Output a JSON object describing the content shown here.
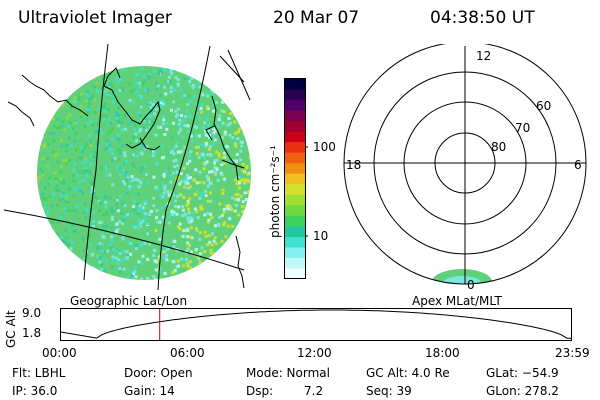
{
  "header": {
    "instrument": "Ultraviolet Imager",
    "date": "20 Mar 07",
    "time": "04:38:50 UT"
  },
  "geo_panel": {
    "label": "Geographic Lat/Lon"
  },
  "apex_panel": {
    "label": "Apex MLat/MLT",
    "mlt_labels": {
      "top": "12",
      "left": "18",
      "right": "6",
      "bottom": "0"
    },
    "lat_labels": [
      "60",
      "70",
      "80"
    ]
  },
  "colorbar": {
    "unit_label": "photon cm⁻²s⁻¹",
    "tick_labels": [
      "100",
      "10"
    ],
    "colors": [
      "#000040",
      "#2a0050",
      "#500068",
      "#7a0050",
      "#a00030",
      "#c80018",
      "#e83010",
      "#f06010",
      "#f09010",
      "#f0c020",
      "#d0e030",
      "#a0e030",
      "#70d840",
      "#40d060",
      "#20c8a0",
      "#40e0d0",
      "#80f0f0",
      "#c0f8f8",
      "#f0ffff"
    ]
  },
  "timeline": {
    "y_title": "GC Alt",
    "y_ticks": [
      "9.0",
      "1.8"
    ],
    "x_ticks": [
      "00:00",
      "06:00",
      "12:00",
      "18:00",
      "23:59"
    ],
    "marker_time": "04:38"
  },
  "info": {
    "filter": "Flt: LBHL",
    "ip": "IP: 36.0",
    "door": "Door: Open",
    "gain": "Gain: 14",
    "mode": "Mode: Normal",
    "dsp_label": "Dsp:",
    "dsp_value": "7.2",
    "gc_alt": "GC Alt: 4.0 Re",
    "seq": "Seq: 39",
    "glat": "GLat: −54.9",
    "glon": "GLon: 278.2"
  }
}
